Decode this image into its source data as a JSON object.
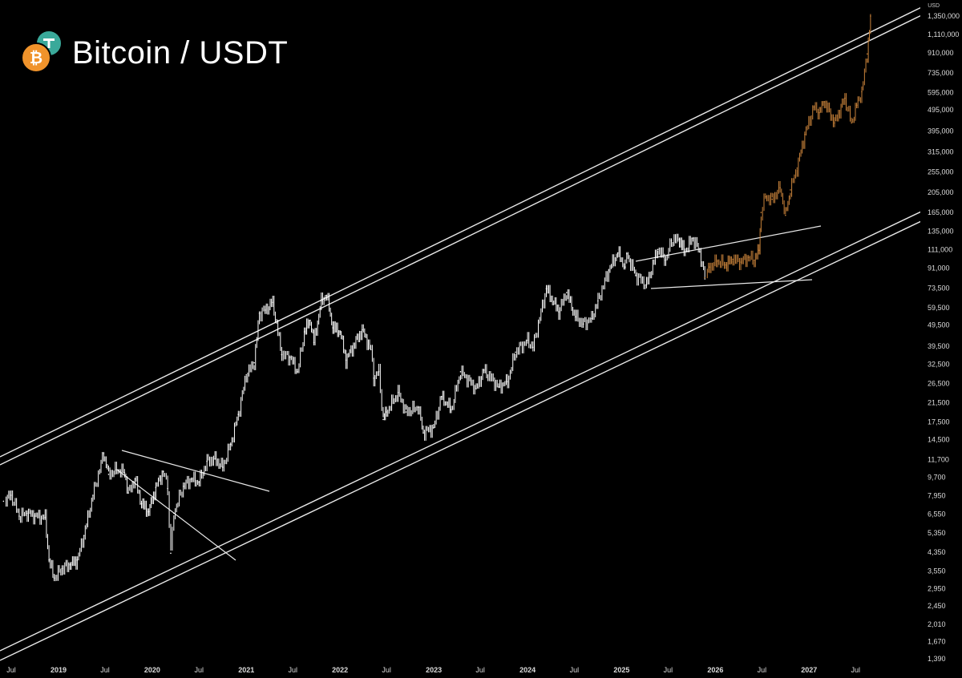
{
  "header": {
    "title": "Bitcoin / USDT",
    "currency": "USD"
  },
  "colors": {
    "background": "#000000",
    "price": "#ffffff",
    "projection": "#c8823a",
    "trendline": "#e8e8e8",
    "btc": "#f0932b",
    "usdt": "#3aa99a"
  },
  "icons": [
    "bitcoin-logo-icon",
    "usdt-logo-icon"
  ],
  "chart_data": {
    "type": "line",
    "scale": "log",
    "ylim": [
      1390,
      1350000
    ],
    "y_ticks": [
      1390,
      1670,
      2010,
      2450,
      2950,
      3550,
      4350,
      5350,
      6550,
      7950,
      9700,
      11700,
      14500,
      17500,
      21500,
      26500,
      32500,
      39500,
      49500,
      59500,
      73500,
      91000,
      111000,
      135000,
      165000,
      205000,
      255000,
      315000,
      395000,
      495000,
      595000,
      735000,
      910000,
      1110000,
      1350000
    ],
    "y_tick_labels": [
      "1,390",
      "1,670",
      "2,010",
      "2,450",
      "2,950",
      "3,550",
      "4,350",
      "5,350",
      "6,550",
      "7,950",
      "9,700",
      "11,700",
      "14,500",
      "17,500",
      "21,500",
      "26,500",
      "32,500",
      "39,500",
      "49,500",
      "59,500",
      "73,500",
      "91,000",
      "111,000",
      "135,000",
      "165,000",
      "205,000",
      "255,000",
      "315,000",
      "395,000",
      "495,000",
      "595,000",
      "735,000",
      "910,000",
      "1,110,000",
      "1,350,000"
    ],
    "x_ticks": [
      "2018-07",
      "2019-01",
      "2019-07",
      "2020-01",
      "2020-07",
      "2021-01",
      "2021-07",
      "2022-01",
      "2022-07",
      "2023-01",
      "2023-07",
      "2024-01",
      "2024-07",
      "2025-01",
      "2025-07",
      "2026-01",
      "2026-07",
      "2027-01",
      "2027-07"
    ],
    "x_tick_labels": [
      "Jul",
      "2019",
      "Jul",
      "2020",
      "Jul",
      "2021",
      "Jul",
      "2022",
      "Jul",
      "2023",
      "Jul",
      "2024",
      "Jul",
      "2025",
      "Jul",
      "2026",
      "Jul",
      "2027",
      "Jul"
    ],
    "xlim": [
      "2018-07-01",
      "2027-11-05"
    ],
    "series": [
      {
        "type": "historical",
        "points": [
          [
            "2018-06-01",
            7500
          ],
          [
            "2018-07-01",
            8000
          ],
          [
            "2018-08-01",
            6400
          ],
          [
            "2018-09-01",
            6600
          ],
          [
            "2018-10-01",
            6400
          ],
          [
            "2018-11-10",
            6300
          ],
          [
            "2018-11-25",
            4000
          ],
          [
            "2018-12-15",
            3300
          ],
          [
            "2019-01-15",
            3650
          ],
          [
            "2019-02-15",
            3800
          ],
          [
            "2019-03-15",
            4000
          ],
          [
            "2019-04-10",
            5200
          ],
          [
            "2019-05-15",
            8000
          ],
          [
            "2019-06-26",
            12500
          ],
          [
            "2019-07-15",
            10000
          ],
          [
            "2019-08-15",
            10500
          ],
          [
            "2019-09-15",
            10200
          ],
          [
            "2019-09-30",
            8200
          ],
          [
            "2019-10-26",
            9500
          ],
          [
            "2019-11-20",
            7300
          ],
          [
            "2019-12-18",
            6700
          ],
          [
            "2020-01-15",
            8700
          ],
          [
            "2020-02-13",
            10300
          ],
          [
            "2020-03-01",
            8600
          ],
          [
            "2020-03-13",
            4300
          ],
          [
            "2020-03-25",
            6600
          ],
          [
            "2020-05-01",
            8800
          ],
          [
            "2020-06-01",
            9500
          ],
          [
            "2020-07-01",
            9200
          ],
          [
            "2020-08-01",
            11500
          ],
          [
            "2020-09-01",
            11800
          ],
          [
            "2020-10-01",
            10800
          ],
          [
            "2020-11-01",
            13800
          ],
          [
            "2020-12-01",
            19000
          ],
          [
            "2021-01-01",
            29000
          ],
          [
            "2021-02-01",
            33000
          ],
          [
            "2021-02-21",
            56000
          ],
          [
            "2021-03-15",
            58000
          ],
          [
            "2021-04-14",
            63000
          ],
          [
            "2021-05-19",
            36000
          ],
          [
            "2021-06-20",
            35000
          ],
          [
            "2021-07-20",
            30000
          ],
          [
            "2021-08-15",
            46000
          ],
          [
            "2021-09-07",
            52000
          ],
          [
            "2021-09-21",
            41000
          ],
          [
            "2021-10-20",
            64000
          ],
          [
            "2021-11-10",
            68000
          ],
          [
            "2021-12-04",
            48000
          ],
          [
            "2022-01-01",
            46000
          ],
          [
            "2022-01-24",
            34000
          ],
          [
            "2022-03-28",
            47000
          ],
          [
            "2022-05-01",
            38000
          ],
          [
            "2022-05-12",
            28000
          ],
          [
            "2022-06-01",
            30000
          ],
          [
            "2022-06-18",
            18000
          ],
          [
            "2022-07-01",
            19500
          ],
          [
            "2022-08-15",
            24000
          ],
          [
            "2022-09-15",
            19500
          ],
          [
            "2022-11-01",
            20500
          ],
          [
            "2022-11-21",
            15600
          ],
          [
            "2022-12-31",
            16500
          ],
          [
            "2023-01-31",
            23000
          ],
          [
            "2023-03-10",
            20000
          ],
          [
            "2023-04-15",
            30000
          ],
          [
            "2023-06-15",
            25000
          ],
          [
            "2023-07-15",
            30500
          ],
          [
            "2023-09-10",
            25500
          ],
          [
            "2023-10-15",
            27000
          ],
          [
            "2023-11-15",
            37000
          ],
          [
            "2024-01-01",
            42000
          ],
          [
            "2024-01-22",
            39000
          ],
          [
            "2024-03-14",
            73000
          ],
          [
            "2024-05-01",
            57000
          ],
          [
            "2024-06-01",
            70000
          ],
          [
            "2024-07-05",
            54000
          ],
          [
            "2024-08-05",
            50000
          ],
          [
            "2024-09-06",
            53000
          ],
          [
            "2024-10-01",
            64000
          ],
          [
            "2024-11-12",
            89000
          ],
          [
            "2024-12-17",
            107000
          ],
          [
            "2025-01-15",
            92000
          ],
          [
            "2025-01-21",
            106000
          ],
          [
            "2025-02-25",
            84000
          ],
          [
            "2025-04-08",
            76000
          ],
          [
            "2025-05-22",
            111000
          ],
          [
            "2025-06-22",
            99000
          ],
          [
            "2025-07-14",
            122000
          ],
          [
            "2025-08-14",
            124000
          ],
          [
            "2025-09-01",
            108000
          ],
          [
            "2025-10-06",
            125000
          ],
          [
            "2025-11-01",
            108000
          ],
          [
            "2025-11-21",
            82000
          ]
        ]
      },
      {
        "type": "projection",
        "points": [
          [
            "2025-11-21",
            82000
          ],
          [
            "2025-12-10",
            92000
          ],
          [
            "2026-01-10",
            98000
          ],
          [
            "2026-02-10",
            94000
          ],
          [
            "2026-03-10",
            100000
          ],
          [
            "2026-04-10",
            97000
          ],
          [
            "2026-05-10",
            102000
          ],
          [
            "2026-06-01",
            99000
          ],
          [
            "2026-06-20",
            110000
          ],
          [
            "2026-06-28",
            165000
          ],
          [
            "2026-07-15",
            195000
          ],
          [
            "2026-08-10",
            190000
          ],
          [
            "2026-09-10",
            215000
          ],
          [
            "2026-10-01",
            160000
          ],
          [
            "2026-10-20",
            210000
          ],
          [
            "2026-11-15",
            265000
          ],
          [
            "2026-12-15",
            380000
          ],
          [
            "2027-01-20",
            510000
          ],
          [
            "2027-02-10",
            480000
          ],
          [
            "2027-03-01",
            540000
          ],
          [
            "2027-04-10",
            430000
          ],
          [
            "2027-05-20",
            560000
          ],
          [
            "2027-06-15",
            430000
          ],
          [
            "2027-07-05",
            520000
          ],
          [
            "2027-07-25",
            600000
          ],
          [
            "2027-08-15",
            900000
          ],
          [
            "2027-08-28",
            1350000
          ]
        ]
      }
    ]
  }
}
